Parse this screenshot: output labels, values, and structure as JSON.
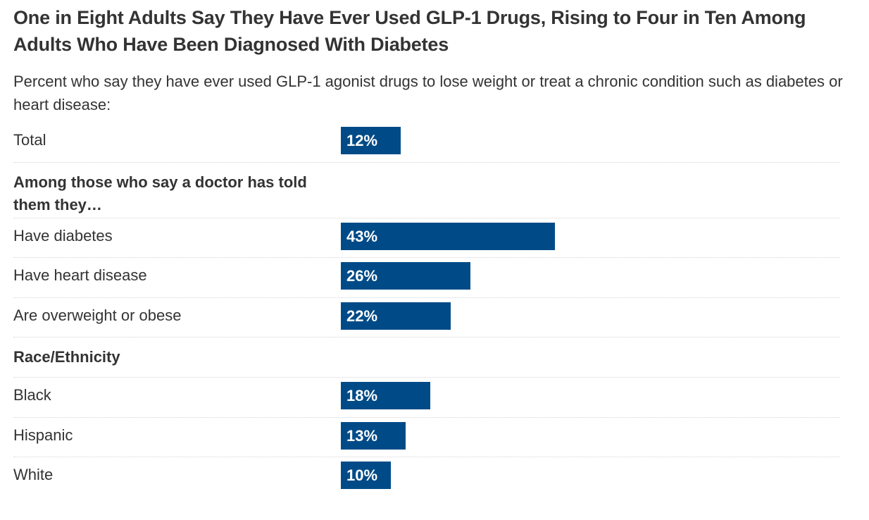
{
  "title": "One in Eight Adults Say They Have Ever Used GLP-1 Drugs, Rising to Four in Ten Among Adults Who Have Been Diagnosed With Diabetes",
  "subtitle": "Percent who say they have ever used GLP-1 agonist drugs to lose weight or treat a chronic condition such as diabetes or heart disease:",
  "colors": {
    "bar": "#004b87"
  },
  "chart_data": {
    "type": "bar",
    "orientation": "horizontal",
    "grid": false,
    "legend": "none",
    "xlim": [
      0,
      100
    ],
    "rows": [
      {
        "kind": "bar",
        "label": "Total",
        "value": 12,
        "value_label": "12%"
      },
      {
        "kind": "header",
        "label": "Among those who say a doctor has told them they…"
      },
      {
        "kind": "bar",
        "label": "Have diabetes",
        "value": 43,
        "value_label": "43%"
      },
      {
        "kind": "bar",
        "label": "Have heart disease",
        "value": 26,
        "value_label": "26%"
      },
      {
        "kind": "bar",
        "label": "Are overweight or obese",
        "value": 22,
        "value_label": "22%"
      },
      {
        "kind": "header",
        "label": "Race/Ethnicity"
      },
      {
        "kind": "bar",
        "label": "Black",
        "value": 18,
        "value_label": "18%"
      },
      {
        "kind": "bar",
        "label": "Hispanic",
        "value": 13,
        "value_label": "13%"
      },
      {
        "kind": "bar",
        "label": "White",
        "value": 10,
        "value_label": "10%"
      }
    ]
  }
}
